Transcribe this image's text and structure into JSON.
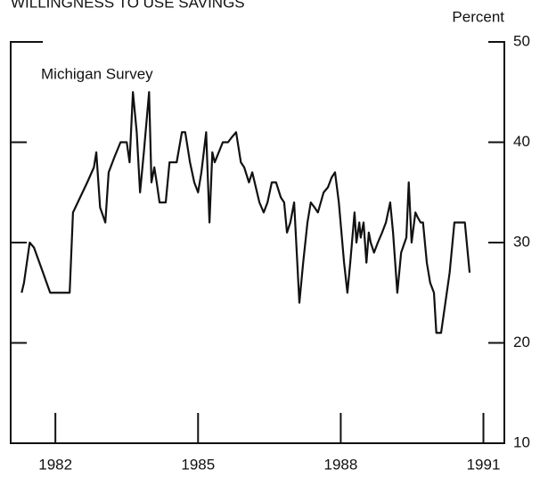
{
  "chart_data": {
    "type": "line",
    "title": "WILLINGNESS TO USE SAVINGS",
    "y_axis_label": "Percent",
    "annotation": "Michigan Survey",
    "color": "#111111",
    "xlim": [
      1981.06,
      1991.44
    ],
    "ylim": [
      10,
      50
    ],
    "xticks": [
      1982,
      1985,
      1988,
      1991
    ],
    "yticks": [
      10,
      20,
      30,
      40,
      50
    ],
    "x": [
      1981.29,
      1981.34,
      1981.46,
      1981.55,
      1981.74,
      1981.89,
      1982.07,
      1982.3,
      1982.37,
      1982.52,
      1982.67,
      1982.81,
      1982.86,
      1982.94,
      1983.05,
      1983.12,
      1983.24,
      1983.37,
      1983.5,
      1983.56,
      1983.63,
      1983.71,
      1983.78,
      1983.86,
      1983.97,
      1984.02,
      1984.08,
      1984.13,
      1984.19,
      1984.32,
      1984.4,
      1984.55,
      1984.66,
      1984.73,
      1984.83,
      1984.92,
      1985.0,
      1985.07,
      1985.17,
      1985.24,
      1985.3,
      1985.35,
      1985.52,
      1985.63,
      1985.71,
      1985.8,
      1985.9,
      1985.97,
      1986.07,
      1986.14,
      1986.19,
      1986.29,
      1986.38,
      1986.46,
      1986.55,
      1986.64,
      1986.74,
      1986.81,
      1986.87,
      1986.94,
      1987.02,
      1987.13,
      1987.21,
      1987.3,
      1987.37,
      1987.45,
      1987.52,
      1987.64,
      1987.73,
      1987.81,
      1987.88,
      1987.96,
      1988.07,
      1988.14,
      1988.2,
      1988.29,
      1988.33,
      1988.39,
      1988.42,
      1988.48,
      1988.54,
      1988.59,
      1988.63,
      1988.7,
      1988.78,
      1988.87,
      1988.95,
      1989.04,
      1989.1,
      1989.19,
      1989.27,
      1989.38,
      1989.43,
      1989.49,
      1989.57,
      1989.62,
      1989.68,
      1989.73,
      1989.81,
      1989.88,
      1989.96,
      1990.01,
      1990.11,
      1990.2,
      1990.29,
      1990.39,
      1990.52,
      1990.61,
      1990.71
    ],
    "values": [
      25,
      26,
      30,
      29.5,
      27,
      25,
      25,
      25,
      33,
      34.5,
      36,
      37.5,
      39,
      33.5,
      32,
      37,
      38.5,
      40,
      40,
      38,
      45,
      41,
      35,
      39,
      45,
      36,
      37.5,
      36,
      34,
      34,
      38,
      38,
      41,
      41,
      38,
      36,
      35,
      37,
      41,
      32,
      39,
      38,
      40,
      40,
      40.5,
      41,
      38,
      37.5,
      36,
      37,
      36,
      34,
      33,
      34,
      36,
      36,
      34.5,
      34,
      31,
      32,
      34,
      24,
      28,
      32,
      34,
      33.5,
      33,
      35,
      35.5,
      36.5,
      37,
      34,
      28,
      25,
      28,
      33,
      30,
      32,
      30.5,
      32,
      28,
      31,
      30,
      29,
      30,
      31,
      32,
      34,
      31,
      25,
      29,
      30.5,
      36,
      30,
      33,
      32.5,
      32,
      32,
      28,
      26,
      25,
      21,
      21,
      24,
      27,
      32,
      32,
      32,
      27
    ]
  }
}
